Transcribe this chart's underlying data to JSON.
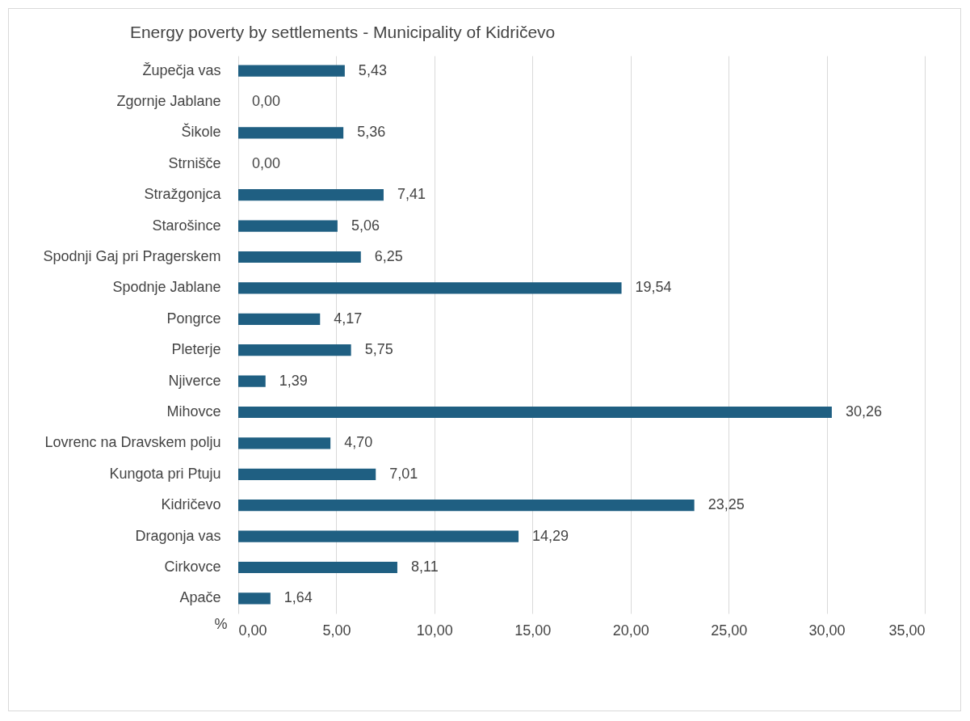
{
  "chart_data": {
    "type": "bar",
    "orientation": "horizontal",
    "title": "Energy poverty by settlements - Municipality of Kidričevo",
    "xlabel": "%",
    "categories": [
      "Župečja vas",
      "Zgornje Jablane",
      "Šikole",
      "Strnišče",
      "Stražgonjca",
      "Starošince",
      "Spodnji Gaj pri Pragerskem",
      "Spodnje Jablane",
      "Pongrce",
      "Pleterje",
      "Njiverce",
      "Mihovce",
      "Lovrenc na Dravskem polju",
      "Kungota pri Ptuju",
      "Kidričevo",
      "Dragonja vas",
      "Cirkovce",
      "Apače"
    ],
    "values": [
      5.43,
      0.0,
      5.36,
      0.0,
      7.41,
      5.06,
      6.25,
      19.54,
      4.17,
      5.75,
      1.39,
      30.26,
      4.7,
      7.01,
      23.25,
      14.29,
      8.11,
      1.64
    ],
    "value_labels": [
      "5,43",
      "0,00",
      "5,36",
      "0,00",
      "7,41",
      "5,06",
      "6,25",
      "19,54",
      "4,17",
      "5,75",
      "1,39",
      "30,26",
      "4,70",
      "7,01",
      "23,25",
      "14,29",
      "8,11",
      "1,64"
    ],
    "color": "#1f5f82",
    "xlim": [
      0,
      35
    ],
    "xticks": [
      {
        "value": 0,
        "label": "0,00"
      },
      {
        "value": 5,
        "label": "5,00"
      },
      {
        "value": 10,
        "label": "10,00"
      },
      {
        "value": 15,
        "label": "15,00"
      },
      {
        "value": 20,
        "label": "20,00"
      },
      {
        "value": 25,
        "label": "25,00"
      },
      {
        "value": 30,
        "label": "30,00"
      },
      {
        "value": 35,
        "label": "35,00"
      }
    ],
    "grid": "x"
  }
}
